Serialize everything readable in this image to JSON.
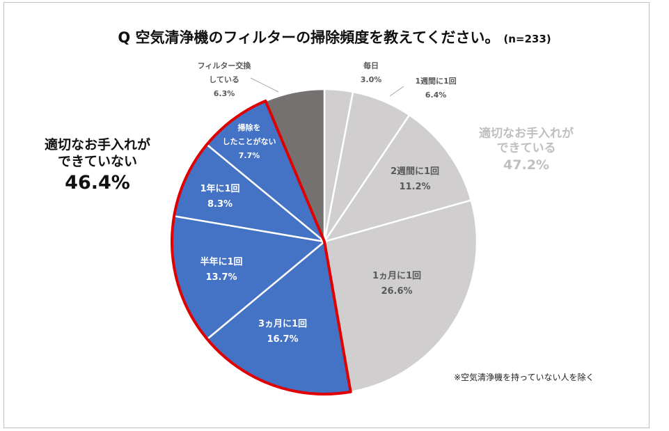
{
  "title": "Q 空気清浄機のフィルターの掃除頻度を教えてください。",
  "sample_note": "(n=233)",
  "footnote": "※空気清浄機を持っていない人を除く",
  "group_not_maintained": {
    "label": "適切なお手入れが\nできていない",
    "percent": "46.4%"
  },
  "group_maintained": {
    "label": "適切なお手入れが\nできている",
    "percent": "47.2%"
  },
  "colors": {
    "maintained": "#d0cece",
    "not_maintained": "#4472c4",
    "filter_change": "#767171",
    "highlight": "#e00000"
  },
  "chart_data": {
    "type": "pie",
    "title": "Q 空気清浄機のフィルターの掃除頻度を教えてください。",
    "slices": [
      {
        "label": "毎日",
        "value": 3.0,
        "display": "3.0%",
        "group": "maintained"
      },
      {
        "label": "1週間に1回",
        "value": 6.4,
        "display": "6.4%",
        "group": "maintained"
      },
      {
        "label": "2週間に1回",
        "value": 11.2,
        "display": "11.2%",
        "group": "maintained"
      },
      {
        "label": "1ヵ月に1回",
        "value": 26.6,
        "display": "26.6%",
        "group": "maintained"
      },
      {
        "label": "3ヵ月に1回",
        "value": 16.7,
        "display": "16.7%",
        "group": "not_maintained"
      },
      {
        "label": "半年に1回",
        "value": 13.7,
        "display": "13.7%",
        "group": "not_maintained"
      },
      {
        "label": "1年に1回",
        "value": 8.3,
        "display": "8.3%",
        "group": "not_maintained"
      },
      {
        "label": "掃除をしたことがない",
        "value": 7.7,
        "display": "7.7%",
        "group": "not_maintained"
      },
      {
        "label": "フィルター交換している",
        "value": 6.3,
        "display": "6.3%",
        "group": "filter_change"
      }
    ]
  }
}
